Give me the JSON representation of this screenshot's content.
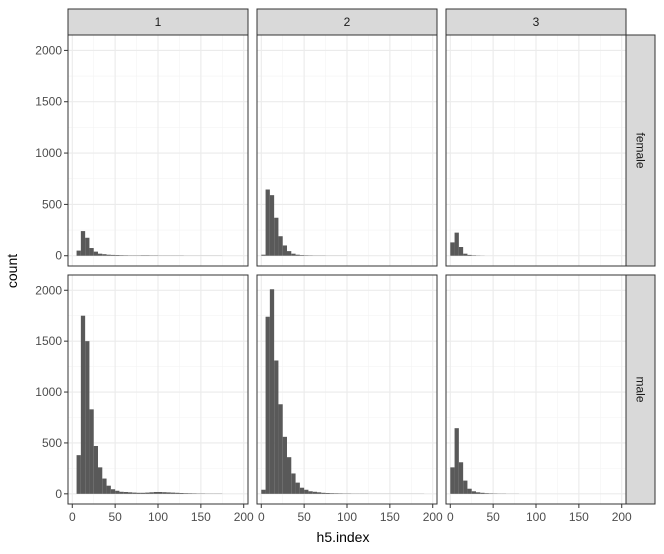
{
  "chart_data": {
    "type": "bar",
    "subtype": "faceted-histogram",
    "xlabel": "h5.index",
    "ylabel": "count",
    "xlim": [
      -5,
      205
    ],
    "ylim": [
      -100,
      2150
    ],
    "x_ticks": [
      0,
      50,
      100,
      150,
      200
    ],
    "y_ticks": [
      0,
      500,
      1000,
      1500,
      2000
    ],
    "bin_width": 5,
    "grid": true,
    "col_facets": [
      "1",
      "2",
      "3"
    ],
    "row_facets": [
      "female",
      "male"
    ],
    "panels": [
      {
        "col": "1",
        "row": "female",
        "bin_start": 5,
        "counts": [
          50,
          240,
          175,
          75,
          40,
          20,
          15,
          10,
          8,
          7,
          5,
          4,
          3,
          3,
          3,
          4,
          4,
          3,
          3,
          2,
          2,
          2,
          2,
          2,
          2,
          1,
          1,
          1,
          1,
          1,
          1,
          1,
          1,
          1
        ]
      },
      {
        "col": "2",
        "row": "female",
        "bin_start": 0,
        "counts": [
          10,
          645,
          590,
          370,
          190,
          100,
          45,
          20,
          10,
          6,
          4,
          3,
          2,
          2,
          2,
          1,
          1,
          1,
          1,
          1
        ]
      },
      {
        "col": "3",
        "row": "female",
        "bin_start": 0,
        "counts": [
          130,
          225,
          85,
          20,
          8,
          4,
          2,
          1
        ]
      },
      {
        "col": "1",
        "row": "male",
        "bin_start": 5,
        "counts": [
          380,
          1750,
          1500,
          830,
          470,
          260,
          150,
          80,
          45,
          30,
          20,
          18,
          15,
          12,
          10,
          10,
          12,
          15,
          18,
          18,
          16,
          14,
          12,
          10,
          8,
          6,
          5,
          4,
          3,
          3,
          2,
          2,
          2,
          2
        ]
      },
      {
        "col": "2",
        "row": "male",
        "bin_start": 0,
        "counts": [
          40,
          1740,
          2010,
          1310,
          880,
          560,
          360,
          200,
          110,
          60,
          40,
          25,
          20,
          15,
          10,
          8,
          6,
          5,
          4,
          3,
          3,
          2,
          2,
          2,
          2,
          1,
          1,
          1,
          1,
          1,
          1,
          1,
          1,
          1,
          1,
          1,
          1,
          1
        ]
      },
      {
        "col": "3",
        "row": "male",
        "bin_start": 0,
        "counts": [
          260,
          645,
          310,
          130,
          50,
          25,
          15,
          10,
          6,
          4,
          3,
          2,
          2,
          1,
          1,
          1
        ]
      }
    ]
  }
}
